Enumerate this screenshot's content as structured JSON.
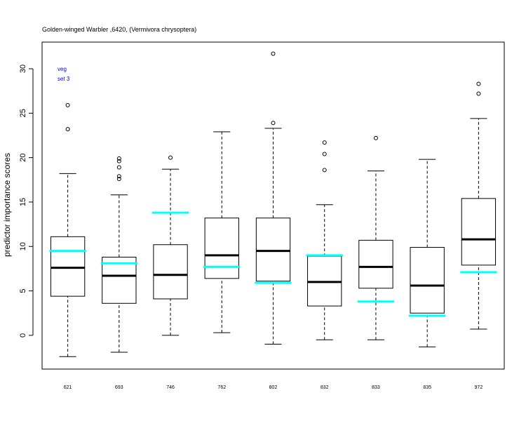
{
  "chart_data": {
    "type": "boxplot",
    "title": "Golden-winged Warbler ,6420, (Vermivora chrysoptera)",
    "ylabel": "predictor importance scores",
    "xlabel": "",
    "ylim": [
      -3.8,
      33
    ],
    "yticks": [
      0,
      5,
      10,
      15,
      20,
      25,
      30
    ],
    "legend": [
      "veg",
      "set 3"
    ],
    "legend_color": "#0000ff",
    "reference_color": "#00ffff",
    "grid": false,
    "categories": [
      "621",
      "693",
      "746",
      "762",
      "802",
      "832",
      "833",
      "835",
      "972"
    ],
    "boxes": [
      {
        "whisker_low": -2.4,
        "q1": 4.4,
        "median": 7.6,
        "q3": 11.1,
        "whisker_high": 18.2,
        "outliers": [
          23.2,
          25.9
        ],
        "reference": 9.5
      },
      {
        "whisker_low": -1.9,
        "q1": 3.6,
        "median": 6.7,
        "q3": 8.8,
        "whisker_high": 15.8,
        "outliers": [
          17.6,
          17.9,
          18.9,
          19.6,
          19.9
        ],
        "reference": 8.1
      },
      {
        "whisker_low": 0.0,
        "q1": 4.1,
        "median": 6.8,
        "q3": 10.2,
        "whisker_high": 18.7,
        "outliers": [
          20.0
        ],
        "reference": 13.8
      },
      {
        "whisker_low": 0.3,
        "q1": 6.4,
        "median": 9.0,
        "q3": 13.2,
        "whisker_high": 22.9,
        "outliers": [],
        "reference": 7.7
      },
      {
        "whisker_low": -1.0,
        "q1": 6.1,
        "median": 9.5,
        "q3": 13.2,
        "whisker_high": 23.3,
        "outliers": [
          23.9,
          31.7
        ],
        "reference": 5.9
      },
      {
        "whisker_low": -0.5,
        "q1": 3.3,
        "median": 6.0,
        "q3": 8.9,
        "whisker_high": 14.7,
        "outliers": [
          18.6,
          20.4,
          21.7
        ],
        "reference": 9.0
      },
      {
        "whisker_low": -0.5,
        "q1": 5.3,
        "median": 7.7,
        "q3": 10.7,
        "whisker_high": 18.5,
        "outliers": [
          22.2
        ],
        "reference": 3.8
      },
      {
        "whisker_low": -1.3,
        "q1": 2.5,
        "median": 5.6,
        "q3": 9.9,
        "whisker_high": 19.8,
        "outliers": [],
        "reference": 2.2
      },
      {
        "whisker_low": 0.7,
        "q1": 7.9,
        "median": 10.8,
        "q3": 15.4,
        "whisker_high": 24.4,
        "outliers": [
          27.2,
          28.3
        ],
        "reference": 7.1
      }
    ]
  }
}
